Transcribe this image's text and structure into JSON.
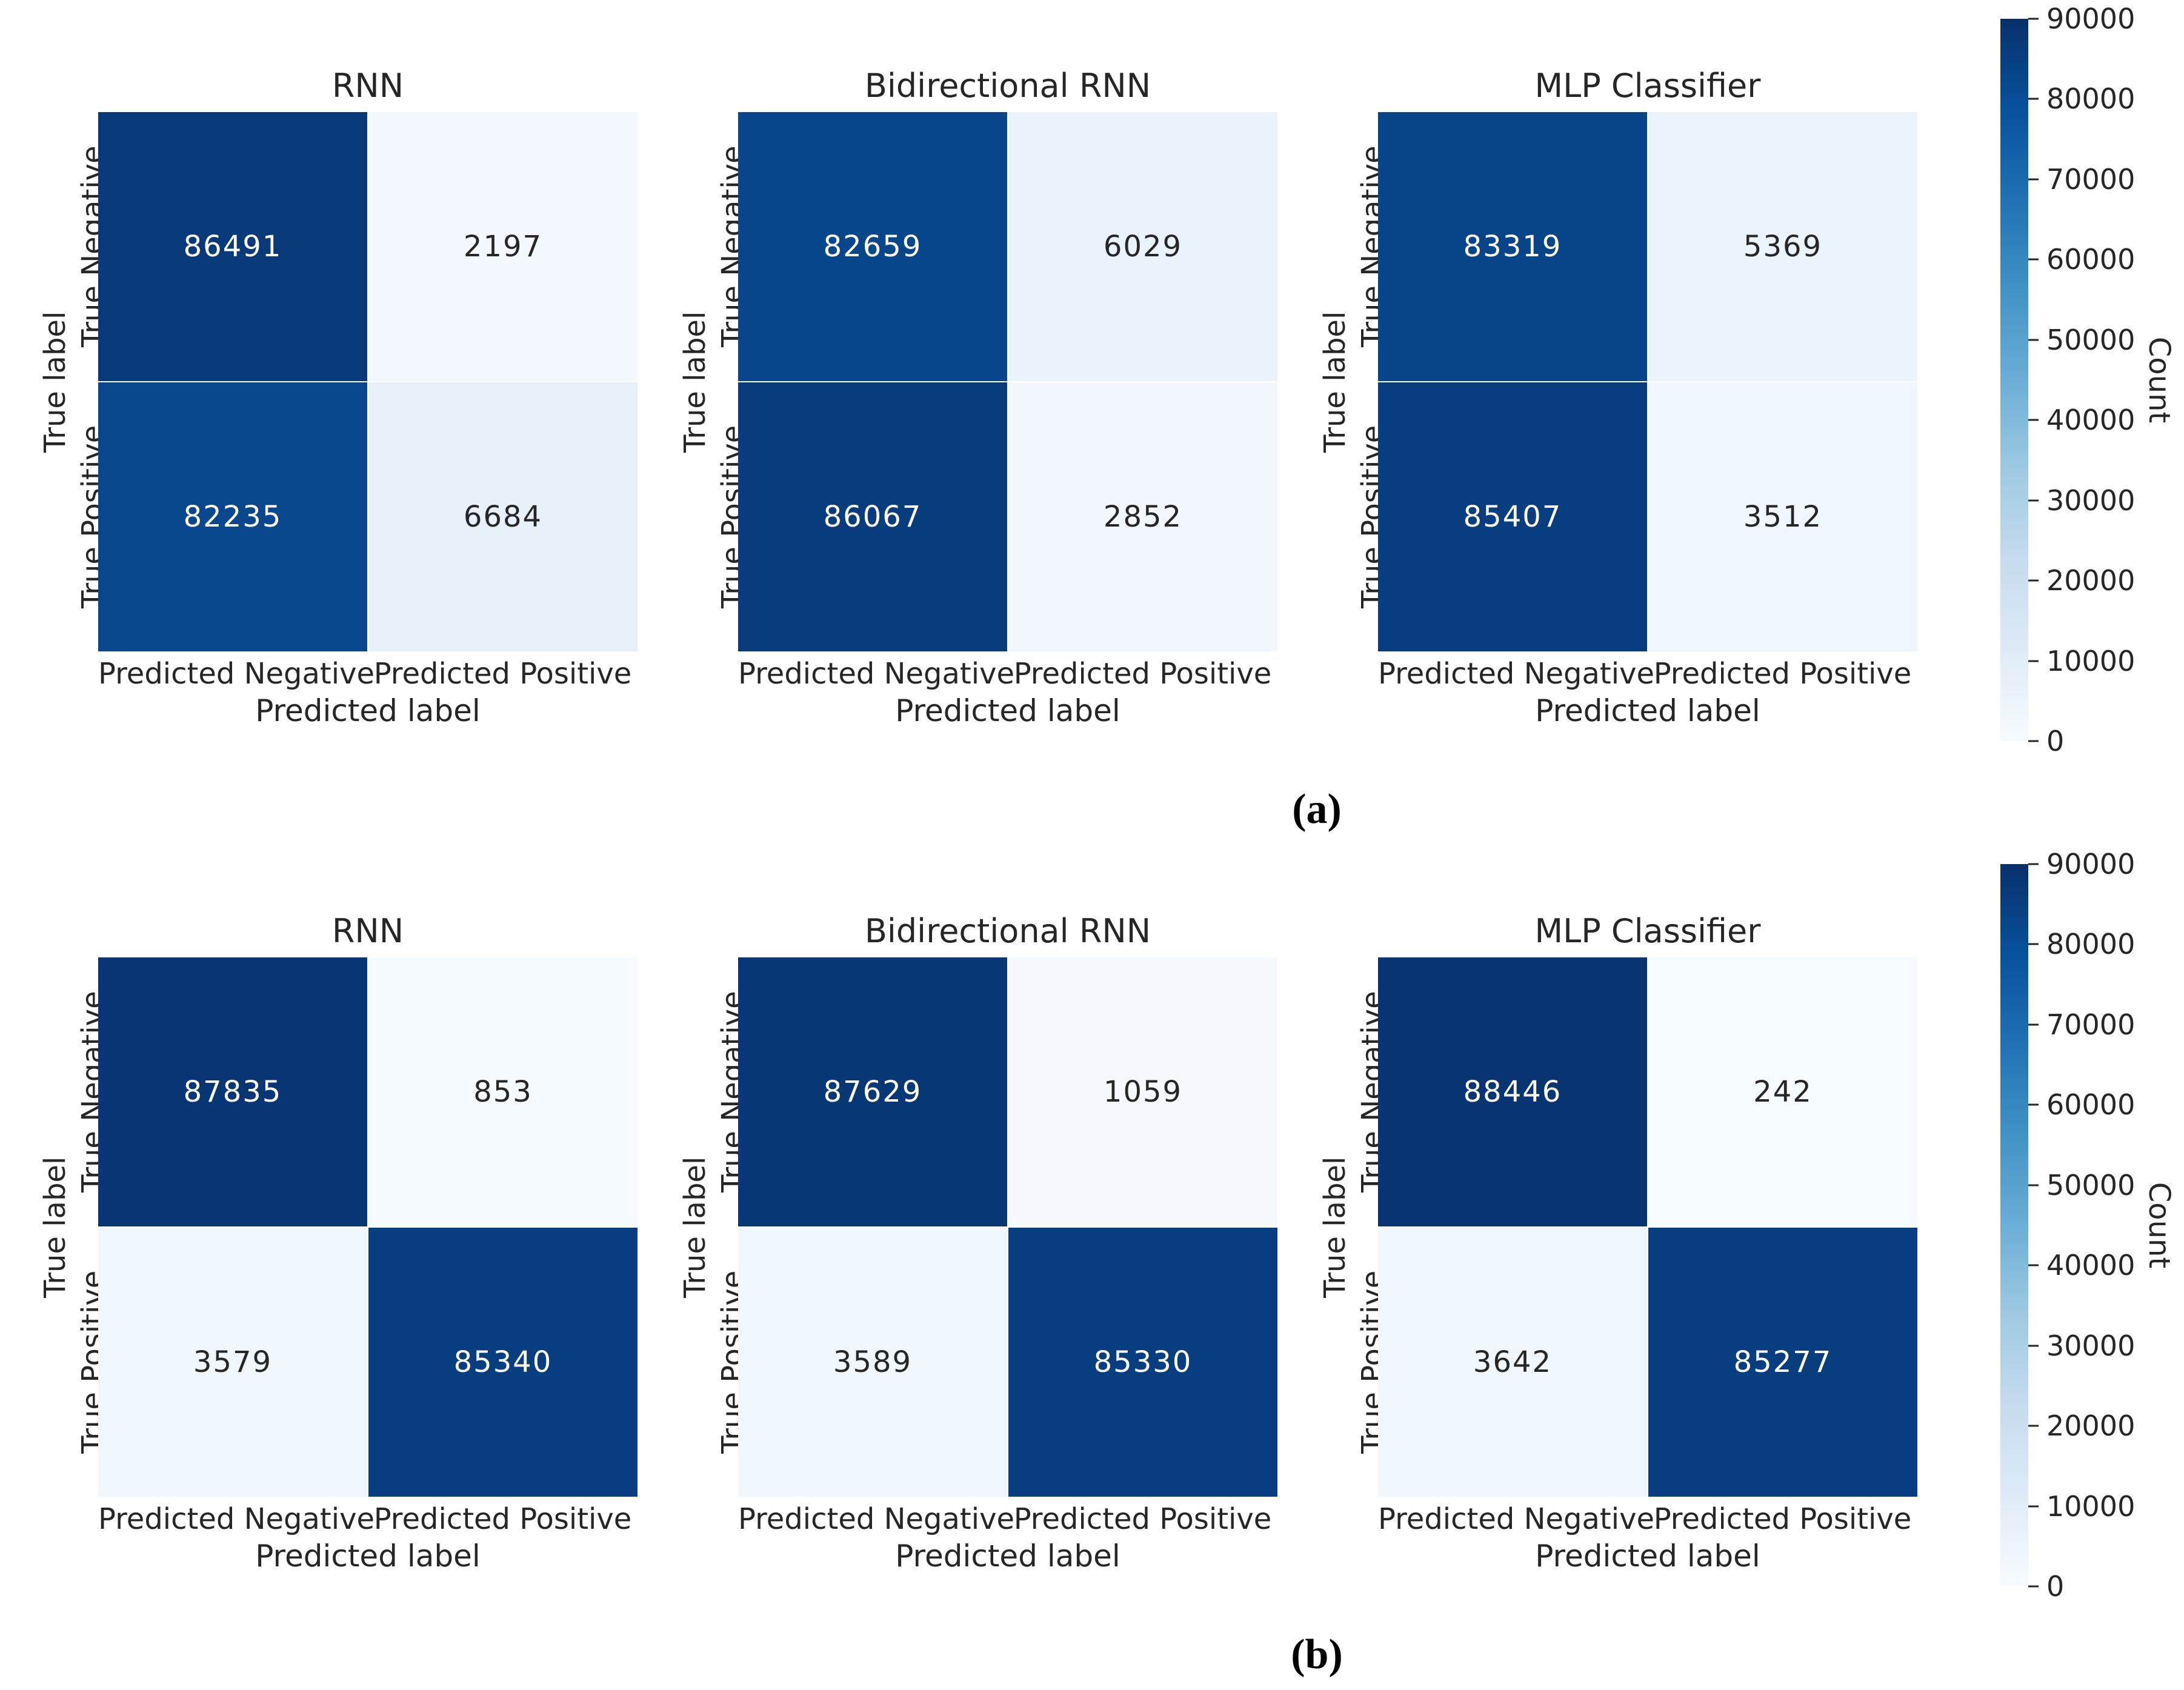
{
  "chart_data": {
    "type": "heatmap",
    "description": "Six 2x2 confusion matrices in two rows (a) and (b), three classifiers each, seaborn-style Blues heatmaps with count annotations and shared colorbars",
    "colormap": "Blues",
    "colormap_stops": [
      "#f7fbff",
      "#deebf7",
      "#c6dbef",
      "#9ecae1",
      "#6baed6",
      "#4292c6",
      "#2171b5",
      "#08519c",
      "#08306b"
    ],
    "vmin": 0,
    "vmax": 90000,
    "xlabel": "Predicted label",
    "ylabel": "True label",
    "x_categories": [
      "Predicted Negative",
      "Predicted Positive"
    ],
    "y_categories": [
      "True Negative",
      "True Positive"
    ],
    "grid_line_color": "#ffffff",
    "annotation_dark_text": "#262626",
    "annotation_light_text": "#ffffff",
    "colorbar": {
      "label": "Count",
      "ticks": [
        90000,
        80000,
        70000,
        60000,
        50000,
        40000,
        30000,
        20000,
        10000,
        0
      ]
    },
    "figures": [
      {
        "caption": "(a)",
        "heatmaps": [
          {
            "title": "RNN",
            "values": [
              [
                86491,
                2197
              ],
              [
                82235,
                6684
              ]
            ]
          },
          {
            "title": "Bidirectional RNN",
            "values": [
              [
                82659,
                6029
              ],
              [
                86067,
                2852
              ]
            ]
          },
          {
            "title": "MLP Classifier",
            "values": [
              [
                83319,
                5369
              ],
              [
                85407,
                3512
              ]
            ]
          }
        ]
      },
      {
        "caption": "(b)",
        "heatmaps": [
          {
            "title": "RNN",
            "values": [
              [
                87835,
                853
              ],
              [
                3579,
                85340
              ]
            ]
          },
          {
            "title": "Bidirectional RNN",
            "values": [
              [
                87629,
                1059
              ],
              [
                3589,
                85330
              ]
            ]
          },
          {
            "title": "MLP Classifier",
            "values": [
              [
                88446,
                242
              ],
              [
                3642,
                85277
              ]
            ]
          }
        ]
      }
    ]
  }
}
